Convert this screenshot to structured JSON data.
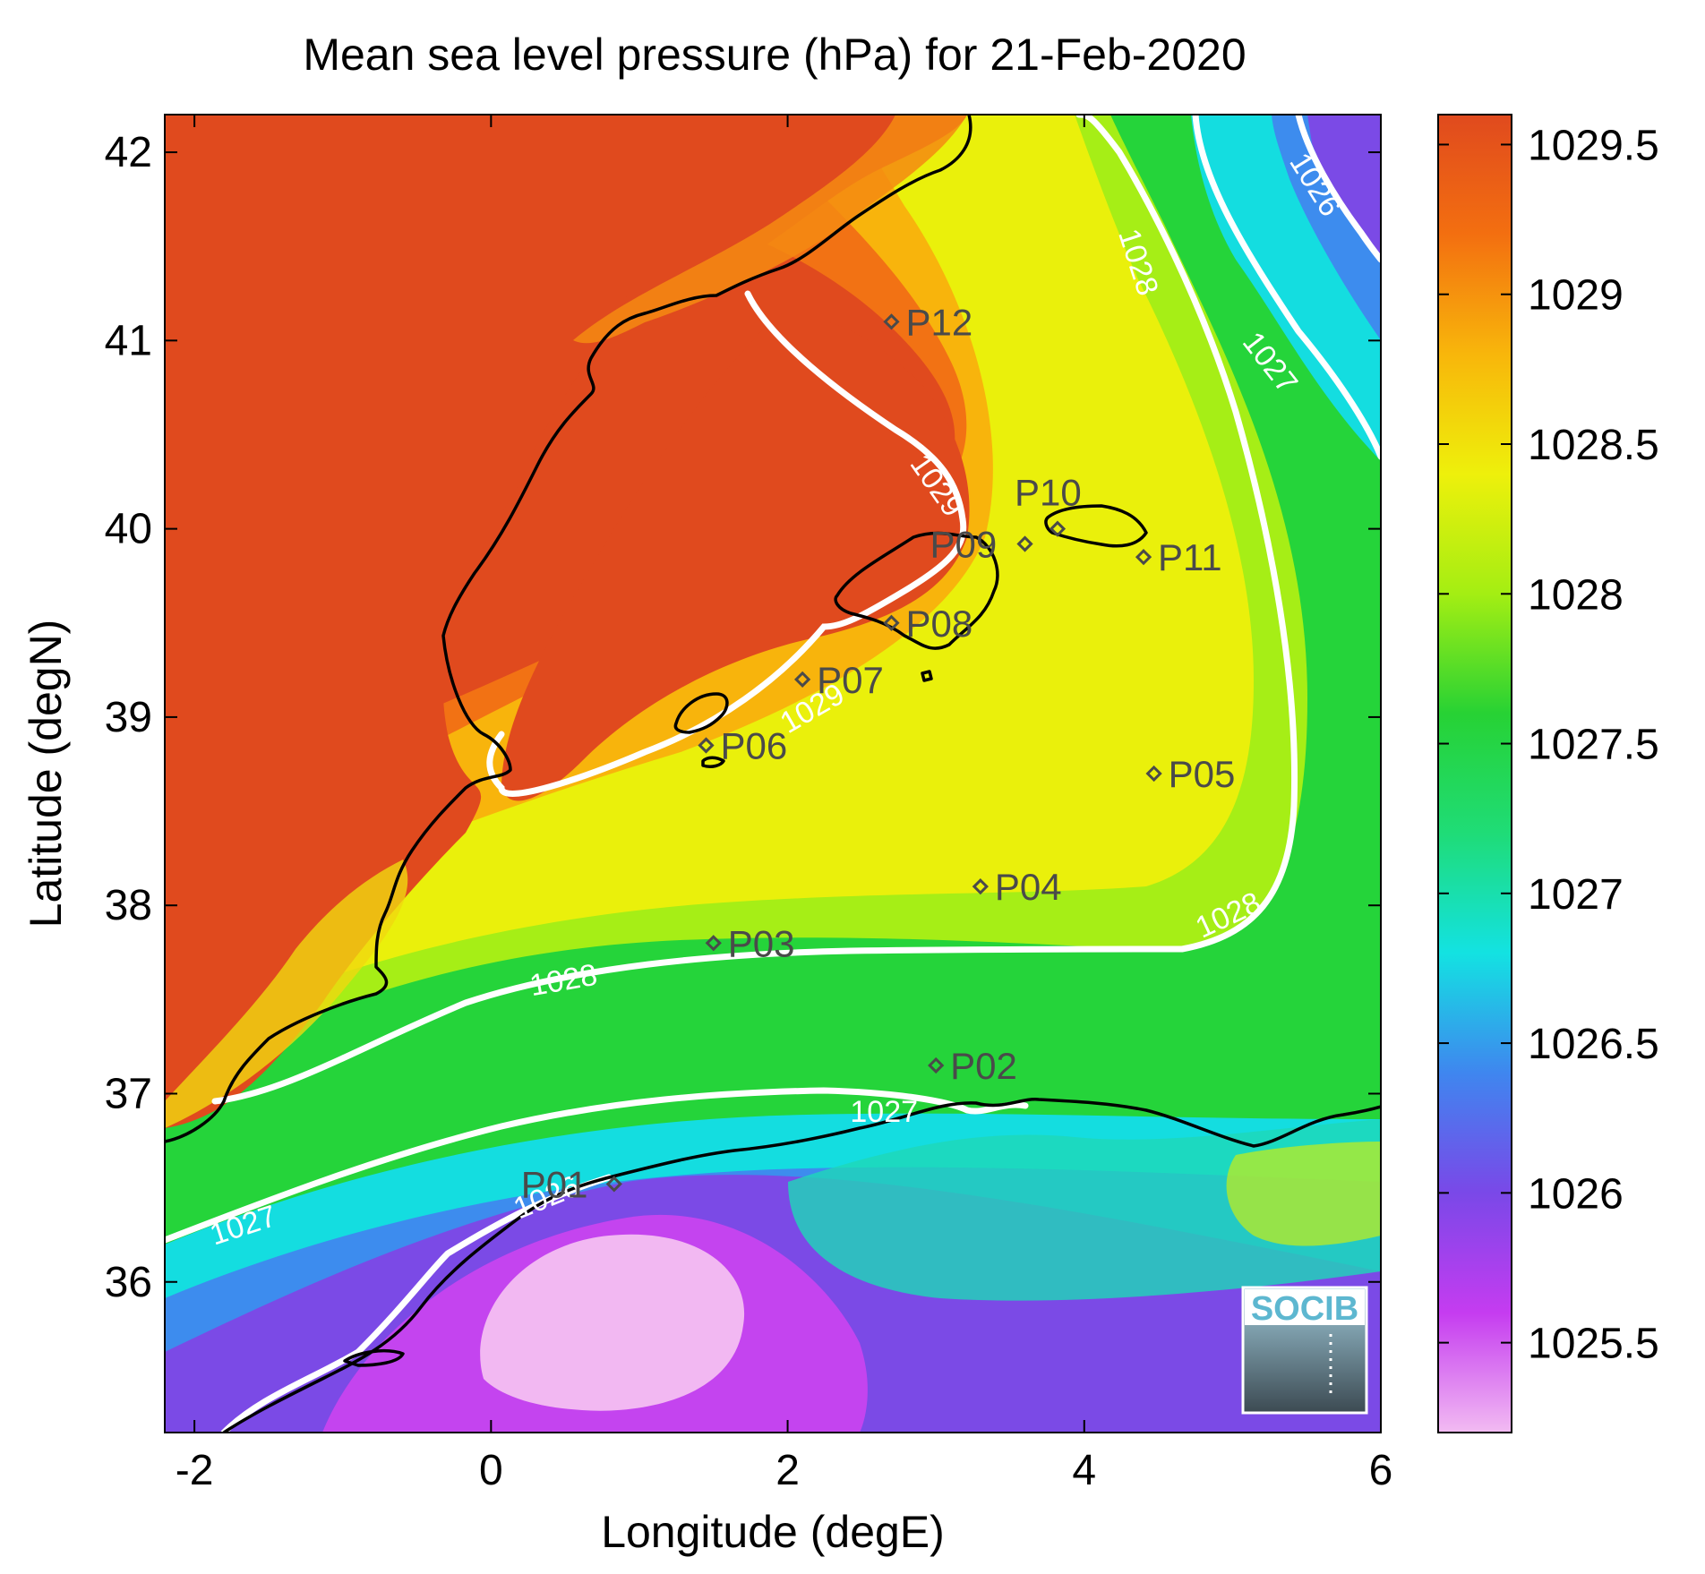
{
  "title": "Mean sea level pressure (hPa) for 21-Feb-2020",
  "x_axis": {
    "label": "Longitude (degE)",
    "range": [
      -2.2,
      6.0
    ],
    "ticks": [
      {
        "value": -2,
        "label": "-2"
      },
      {
        "value": 0,
        "label": "0"
      },
      {
        "value": 2,
        "label": "2"
      },
      {
        "value": 4,
        "label": "4"
      },
      {
        "value": 6,
        "label": "6"
      }
    ]
  },
  "y_axis": {
    "label": "Latitude (degN)",
    "range": [
      35.2,
      42.2
    ],
    "ticks": [
      {
        "value": 36,
        "label": "36"
      },
      {
        "value": 37,
        "label": "37"
      },
      {
        "value": 38,
        "label": "38"
      },
      {
        "value": 39,
        "label": "39"
      },
      {
        "value": 40,
        "label": "40"
      },
      {
        "value": 41,
        "label": "41"
      },
      {
        "value": 42,
        "label": "42"
      }
    ]
  },
  "colorbar": {
    "range": [
      1025.2,
      1029.6
    ],
    "ticks": [
      {
        "value": 1025.5,
        "label": "1025.5"
      },
      {
        "value": 1026,
        "label": "1026"
      },
      {
        "value": 1026.5,
        "label": "1026.5"
      },
      {
        "value": 1027,
        "label": "1027"
      },
      {
        "value": 1027.5,
        "label": "1027.5"
      },
      {
        "value": 1028,
        "label": "1028"
      },
      {
        "value": 1028.5,
        "label": "1028.5"
      },
      {
        "value": 1029,
        "label": "1029"
      },
      {
        "value": 1029.5,
        "label": "1029.5"
      }
    ],
    "colors": [
      "#f2bbf2",
      "#c53cf0",
      "#7a48e8",
      "#3f86ef",
      "#13e2e2",
      "#1fdc77",
      "#27d234",
      "#a4ee13",
      "#eef00b",
      "#f8b60b",
      "#f36f10",
      "#e04a1e"
    ]
  },
  "stations": [
    {
      "id": "P01",
      "lon": 0.83,
      "lat": 36.52
    },
    {
      "id": "P02",
      "lon": 3.0,
      "lat": 37.15
    },
    {
      "id": "P03",
      "lon": 1.5,
      "lat": 37.8
    },
    {
      "id": "P04",
      "lon": 3.3,
      "lat": 38.1
    },
    {
      "id": "P05",
      "lon": 4.47,
      "lat": 38.7
    },
    {
      "id": "P06",
      "lon": 1.45,
      "lat": 38.85
    },
    {
      "id": "P07",
      "lon": 2.1,
      "lat": 39.2
    },
    {
      "id": "P08",
      "lon": 2.7,
      "lat": 39.5
    },
    {
      "id": "P09",
      "lon": 3.6,
      "lat": 39.92
    },
    {
      "id": "P10",
      "lon": 3.82,
      "lat": 40.0
    },
    {
      "id": "P11",
      "lon": 4.4,
      "lat": 39.85
    },
    {
      "id": "P12",
      "lon": 2.7,
      "lat": 41.1
    }
  ],
  "contour_labels": [
    {
      "text": "1026",
      "lon": 5.5,
      "lat": 41.8
    },
    {
      "text": "1027",
      "lon": 5.2,
      "lat": 40.85
    },
    {
      "text": "1028",
      "lon": 4.3,
      "lat": 41.4
    },
    {
      "text": "1029",
      "lon": 2.95,
      "lat": 40.2
    },
    {
      "text": "1029",
      "lon": 2.2,
      "lat": 39.0
    },
    {
      "text": "1028",
      "lon": 0.5,
      "lat": 37.55
    },
    {
      "text": "1028",
      "lon": 5.0,
      "lat": 37.9
    },
    {
      "text": "1027",
      "lon": 2.65,
      "lat": 36.85
    },
    {
      "text": "1027",
      "lon": -1.65,
      "lat": 36.25
    },
    {
      "text": "1026",
      "lon": 0.4,
      "lat": 36.4
    }
  ],
  "logo": {
    "text": "SOCIB"
  }
}
